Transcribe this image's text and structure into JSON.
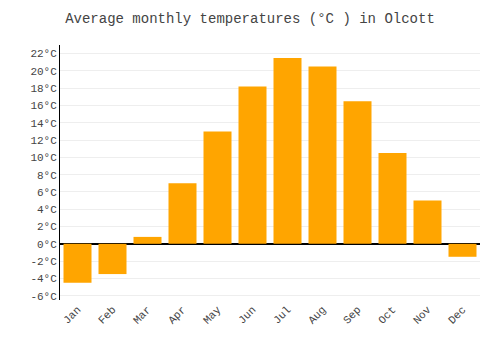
{
  "chart_data": {
    "type": "bar",
    "title": "Average monthly temperatures (°C ) in Olcott",
    "categories": [
      "Jan",
      "Feb",
      "Mar",
      "Apr",
      "May",
      "Jun",
      "Jul",
      "Aug",
      "Sep",
      "Oct",
      "Nov",
      "Dec"
    ],
    "values": [
      -4.5,
      -3.5,
      0.8,
      7.0,
      13.0,
      18.2,
      21.5,
      20.5,
      16.5,
      10.5,
      5.0,
      -1.5
    ],
    "color": "#FFA500",
    "ylim": [
      -6.5,
      23
    ],
    "yticks": [
      {
        "value": -6,
        "label": "-6°C"
      },
      {
        "value": -4,
        "label": "-4°C"
      },
      {
        "value": -2,
        "label": "-2°C"
      },
      {
        "value": 0,
        "label": "0°C"
      },
      {
        "value": 2,
        "label": "2°C"
      },
      {
        "value": 4,
        "label": "4°C"
      },
      {
        "value": 6,
        "label": "6°C"
      },
      {
        "value": 8,
        "label": "8°C"
      },
      {
        "value": 10,
        "label": "10°C"
      },
      {
        "value": 12,
        "label": "12°C"
      },
      {
        "value": 14,
        "label": "14°C"
      },
      {
        "value": 16,
        "label": "16°C"
      },
      {
        "value": 18,
        "label": "18°C"
      },
      {
        "value": 20,
        "label": "20°C"
      },
      {
        "value": 22,
        "label": "22°C"
      }
    ],
    "grid": true
  }
}
